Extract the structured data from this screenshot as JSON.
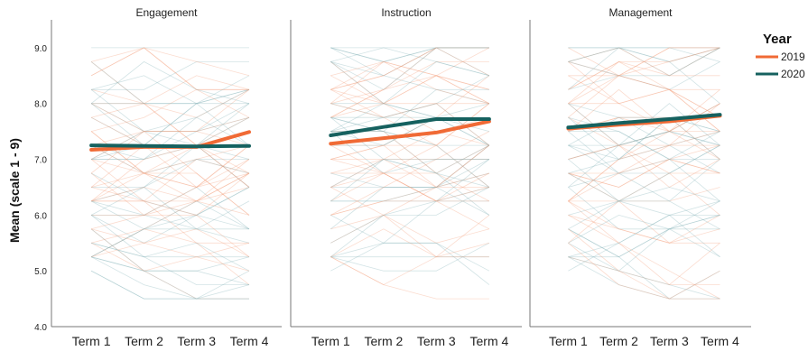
{
  "chart_data": {
    "type": "line",
    "ylabel": "Mean (scale 1 - 9)",
    "ylim": [
      4.0,
      9.5
    ],
    "yticks": [
      "4.0",
      "5.0",
      "6.0",
      "7.0",
      "8.0",
      "9.0"
    ],
    "categories": [
      "Term 1",
      "Term 2",
      "Term 3",
      "Term 4"
    ],
    "legend": {
      "title": "Year",
      "position": "top-right",
      "entries": [
        {
          "label": "2019",
          "color": "#f06a35"
        },
        {
          "label": "2020",
          "color": "#16615f"
        }
      ]
    },
    "panels": [
      {
        "title": "Engagement",
        "series": [
          {
            "name": "2019",
            "color": "#f06a35",
            "values": [
              7.17,
              7.22,
              7.22,
              7.49
            ]
          },
          {
            "name": "2020",
            "color": "#16615f",
            "values": [
              7.25,
              7.24,
              7.23,
              7.24
            ]
          }
        ]
      },
      {
        "title": "Instruction",
        "series": [
          {
            "name": "2019",
            "color": "#f06a35",
            "values": [
              7.28,
              7.38,
              7.48,
              7.68
            ]
          },
          {
            "name": "2020",
            "color": "#16615f",
            "values": [
              7.43,
              7.58,
              7.72,
              7.72
            ]
          }
        ]
      },
      {
        "title": "Management",
        "series": [
          {
            "name": "2019",
            "color": "#f06a35",
            "values": [
              7.55,
              7.62,
              7.68,
              7.78
            ]
          },
          {
            "name": "2020",
            "color": "#16615f",
            "values": [
              7.57,
              7.65,
              7.72,
              7.8
            ]
          }
        ]
      }
    ]
  }
}
